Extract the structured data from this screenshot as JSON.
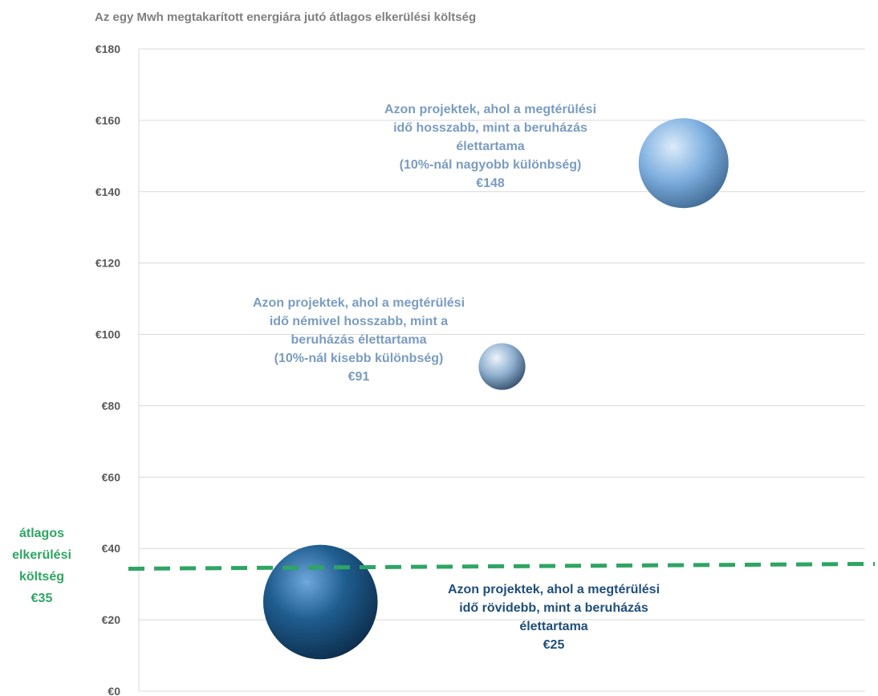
{
  "chart_data": {
    "type": "scatter",
    "title": "Az egy Mwh megtakarított energiára jutó átlagos elkerülési költség",
    "xlabel": "",
    "ylabel": "",
    "ylim": [
      0,
      180
    ],
    "xlim": [
      0,
      4
    ],
    "y_ticks": [
      "€0",
      "€20",
      "€40",
      "€60",
      "€80",
      "€100",
      "€120",
      "€140",
      "€160",
      "€180"
    ],
    "grid": true,
    "series": [
      {
        "x": 1,
        "y": 25,
        "size": 3.0,
        "color": "#1f5d8f",
        "label_lines": [
          "Azon projektek, ahol a megtérülési",
          "idő rövidebb, mint a beruházás",
          "élettartama",
          "€25"
        ],
        "label_color": "#1f4e79"
      },
      {
        "x": 2,
        "y": 91,
        "size": 0.5,
        "color": "#8fb0d0",
        "label_lines": [
          "Azon projektek, ahol a megtérülési",
          "idő némivel hosszabb, mint a",
          "beruházás élettartama",
          "(10%-nál kisebb különbség)",
          "€91"
        ],
        "label_color": "#7a9cc0"
      },
      {
        "x": 3,
        "y": 148,
        "size": 1.85,
        "color": "#7fb0e0",
        "label_lines": [
          "Azon projektek, ahol a megtérülési",
          "idő hosszabb, mint a beruházás",
          "élettartama",
          "(10%-nál nagyobb különbség)",
          "€148"
        ],
        "label_color": "#7a9cc0"
      }
    ],
    "reference_line": {
      "value": 35,
      "color": "#2ea563",
      "style": "dashed",
      "label_lines": [
        "átlagos",
        "elkerülési",
        "költség",
        "€35"
      ]
    }
  }
}
